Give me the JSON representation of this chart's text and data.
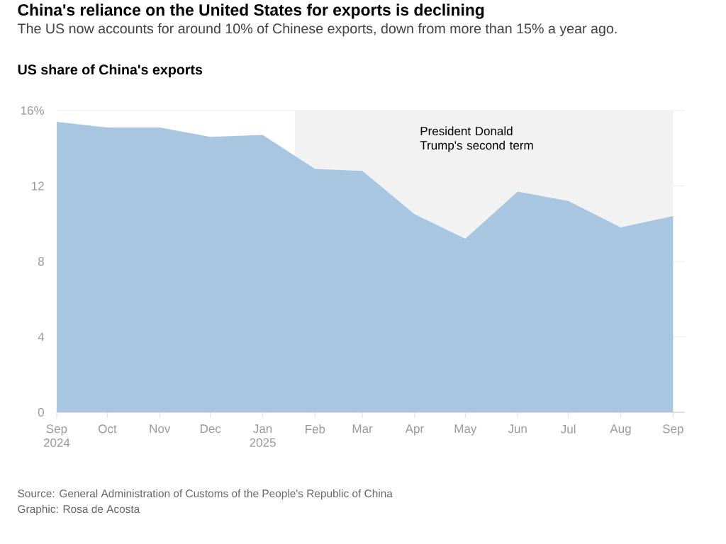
{
  "chart_data": {
    "type": "area",
    "title": "China's reliance on the United States for exports is declining",
    "subtitle": "The US now accounts for around 10% of Chinese exports, down from more than 15% a year ago.",
    "ylabel": "US share of China's exports",
    "x": [
      "2024-09",
      "2024-10",
      "2024-11",
      "2024-12",
      "2025-01",
      "2025-02",
      "2025-03",
      "2025-04",
      "2025-05",
      "2025-06",
      "2025-07",
      "2025-08",
      "2025-09"
    ],
    "values": [
      15.4,
      15.1,
      15.1,
      14.6,
      14.7,
      12.9,
      12.8,
      10.5,
      9.2,
      11.7,
      11.2,
      9.8,
      10.4
    ],
    "color": "#a8c6df",
    "xlim": [
      "2024-09",
      "2025-09-08"
    ],
    "ylim": [
      0,
      16
    ],
    "xticks": [
      {
        "value": "2024-09",
        "label": "Sep 2024"
      },
      {
        "value": "2024-10",
        "label": "Oct"
      },
      {
        "value": "2024-11",
        "label": "Nov"
      },
      {
        "value": "2024-12",
        "label": "Dec"
      },
      {
        "value": "2025-01",
        "label": "Jan 2025"
      },
      {
        "value": "2025-02",
        "label": "Feb"
      },
      {
        "value": "2025-03",
        "label": "Mar"
      },
      {
        "value": "2025-04",
        "label": "Apr"
      },
      {
        "value": "2025-05",
        "label": "May"
      },
      {
        "value": "2025-06",
        "label": "Jun"
      },
      {
        "value": "2025-07",
        "label": "Jul"
      },
      {
        "value": "2025-08",
        "label": "Aug"
      },
      {
        "value": "2025-09",
        "label": "Sep"
      }
    ],
    "yticks": [
      0,
      4,
      8,
      12,
      {
        "value": 16,
        "label": "16%"
      }
    ],
    "grid": "y",
    "bands": [
      {
        "axis": "x",
        "from": "2025-01-20",
        "to": "2025-09",
        "label": "President Donald Trump's second term",
        "color": "#f2f2f2"
      }
    ],
    "annotations": [
      "Source: General Administration of Customs of the People's Republic of China",
      "Graphic: Rosa de Acosta"
    ]
  }
}
